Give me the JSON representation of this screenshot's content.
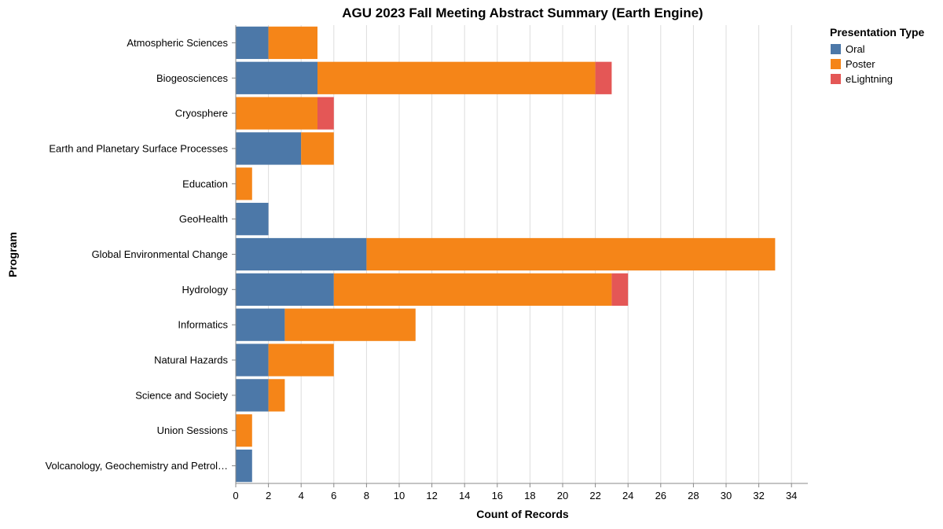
{
  "chart_data": {
    "type": "bar",
    "orientation": "horizontal",
    "stacked": true,
    "title": "AGU 2023 Fall Meeting Abstract Summary (Earth Engine)",
    "xlabel": "Count of Records",
    "ylabel": "Program",
    "xlim": [
      0,
      35
    ],
    "xticks": [
      0,
      2,
      4,
      6,
      8,
      10,
      12,
      14,
      16,
      18,
      20,
      22,
      24,
      26,
      28,
      30,
      32,
      34
    ],
    "grid": true,
    "legend": {
      "title": "Presentation Type",
      "position": "top-right"
    },
    "categories": [
      "Atmospheric Sciences",
      "Biogeosciences",
      "Cryosphere",
      "Earth and Planetary Surface Processes",
      "Education",
      "GeoHealth",
      "Global Environmental Change",
      "Hydrology",
      "Informatics",
      "Natural Hazards",
      "Science and Society",
      "Union Sessions",
      "Volcanology, Geochemistry and Petrol…"
    ],
    "series": [
      {
        "name": "Oral",
        "color": "#4c78a8",
        "values": [
          2,
          5,
          0,
          4,
          0,
          2,
          8,
          6,
          3,
          2,
          2,
          0,
          1
        ]
      },
      {
        "name": "Poster",
        "color": "#f58518",
        "values": [
          3,
          17,
          5,
          2,
          1,
          0,
          25,
          17,
          8,
          4,
          1,
          1,
          0
        ]
      },
      {
        "name": "eLightning",
        "color": "#e45756",
        "values": [
          0,
          1,
          1,
          0,
          0,
          0,
          0,
          1,
          0,
          0,
          0,
          0,
          0
        ]
      }
    ]
  }
}
